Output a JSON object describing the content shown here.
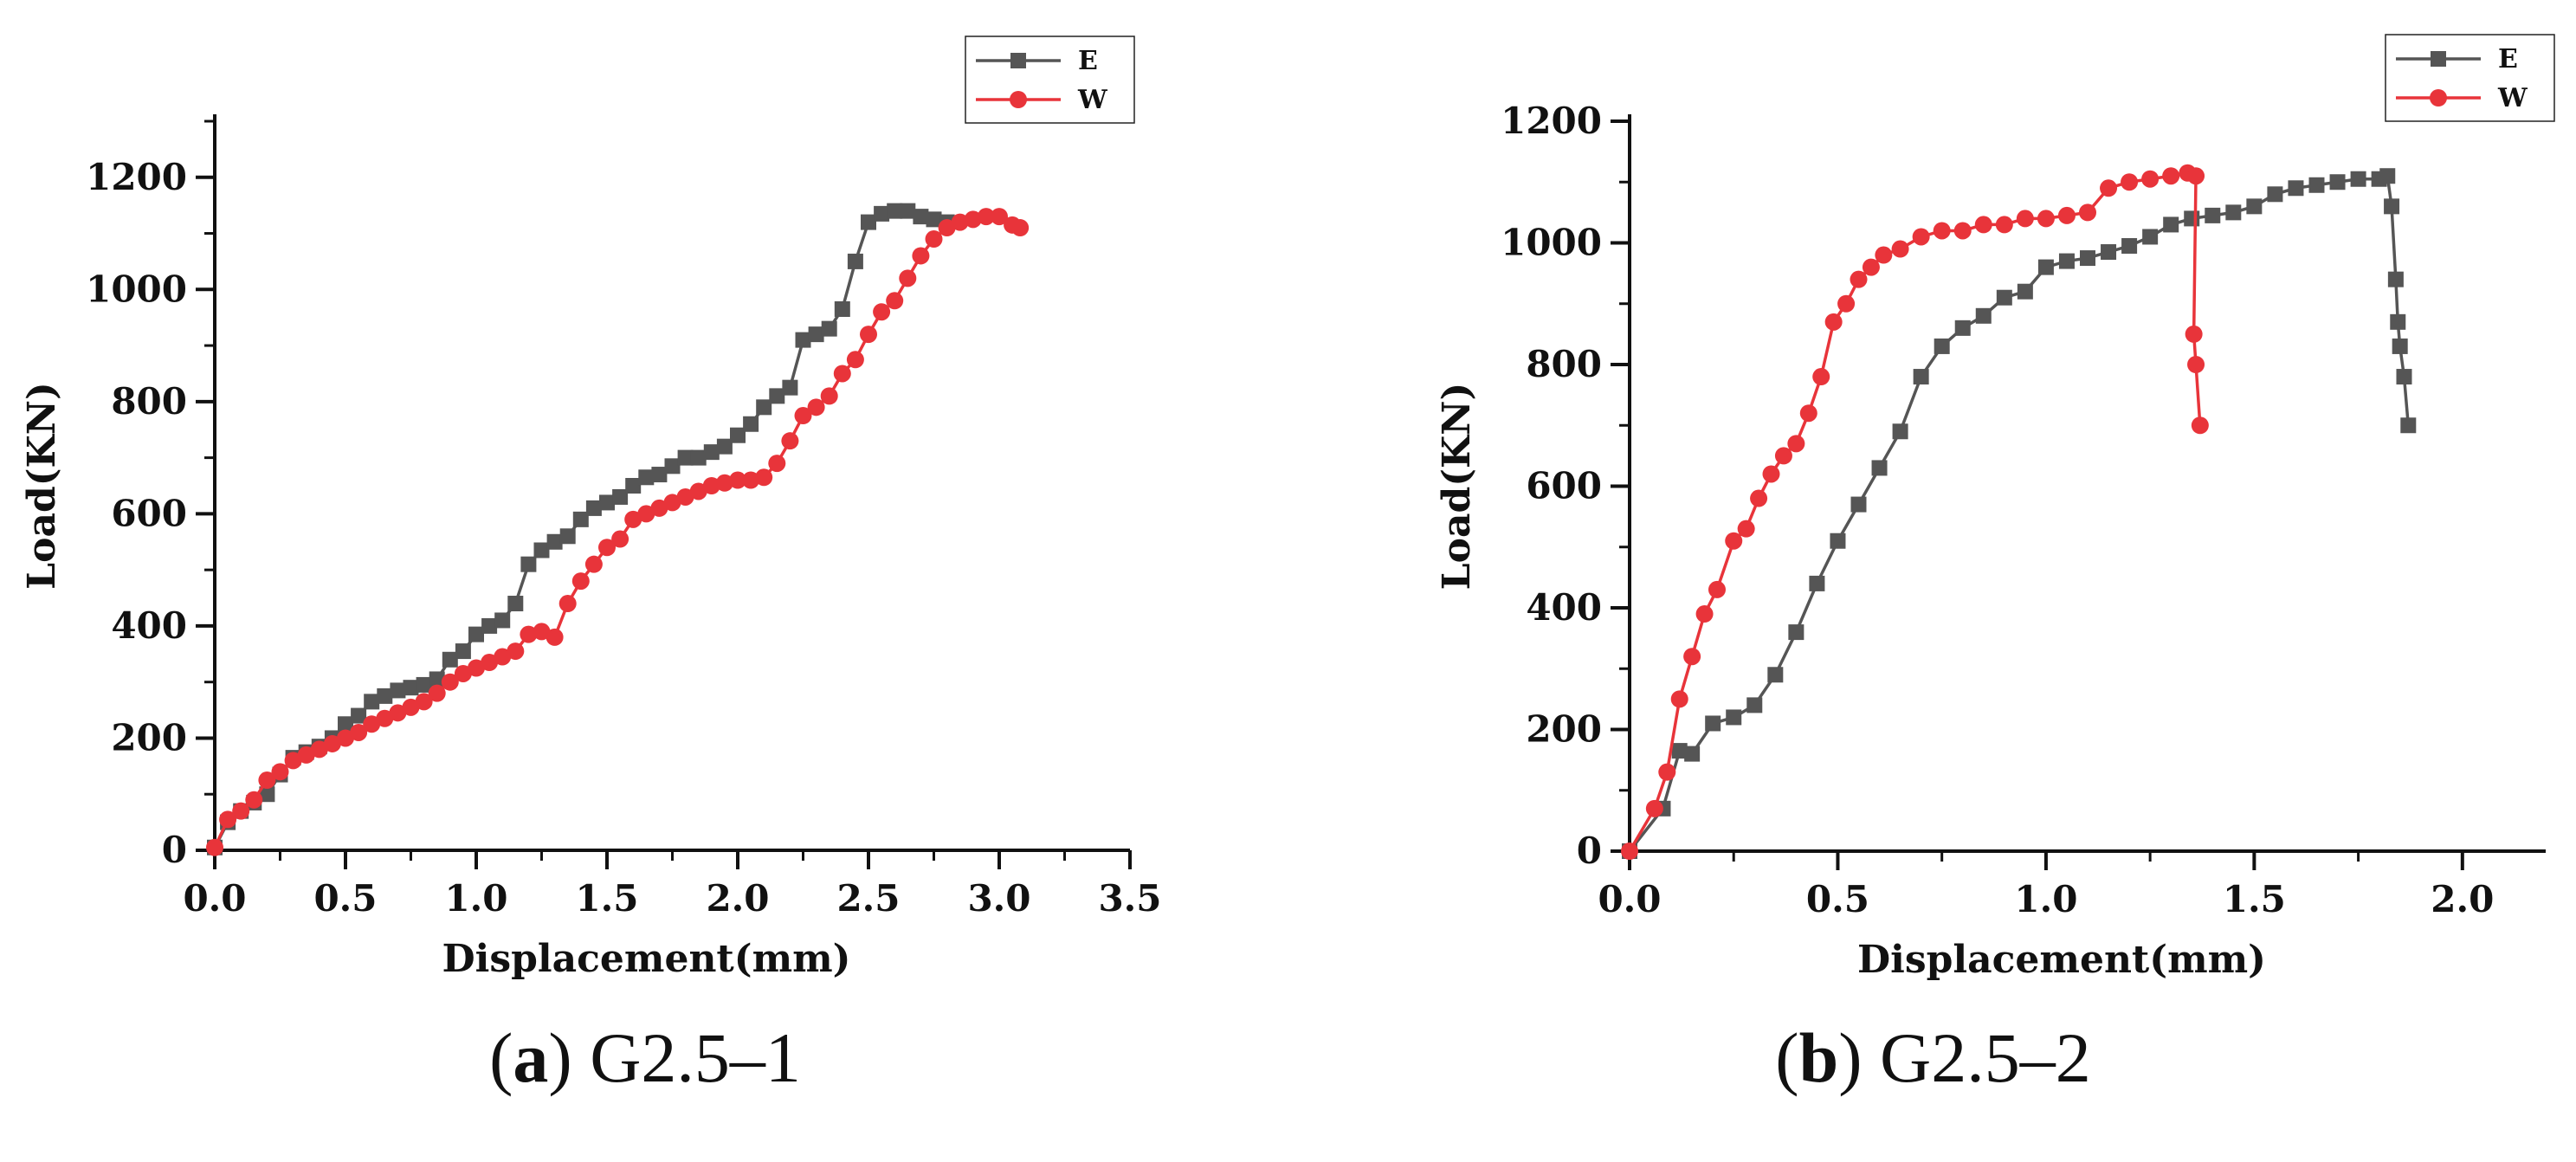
{
  "chart_data": [
    {
      "type": "line",
      "caption_letter": "a",
      "caption_text": "G2.5–1",
      "xlabel": "Displacement(mm)",
      "ylabel": "Load(KN)",
      "xlim": [
        0,
        3.5
      ],
      "ylim": [
        0,
        1300
      ],
      "xticks": [
        "0.0",
        "0.5",
        "1.0",
        "1.5",
        "2.0",
        "2.5",
        "3.0",
        "3.5"
      ],
      "yticks": [
        "0",
        "200",
        "400",
        "600",
        "800",
        "1000",
        "1200"
      ],
      "legend_position": "top-right",
      "series": [
        {
          "name": "E",
          "color": "#555555",
          "marker": "square",
          "x": [
            0.0,
            0.05,
            0.1,
            0.15,
            0.2,
            0.25,
            0.3,
            0.35,
            0.4,
            0.45,
            0.5,
            0.55,
            0.6,
            0.65,
            0.7,
            0.75,
            0.8,
            0.85,
            0.9,
            0.95,
            1.0,
            1.05,
            1.1,
            1.15,
            1.2,
            1.25,
            1.3,
            1.35,
            1.4,
            1.45,
            1.5,
            1.55,
            1.6,
            1.65,
            1.7,
            1.75,
            1.8,
            1.85,
            1.9,
            1.95,
            2.0,
            2.05,
            2.1,
            2.15,
            2.2,
            2.25,
            2.3,
            2.35,
            2.4,
            2.45,
            2.5,
            2.55,
            2.6,
            2.65,
            2.7,
            2.75,
            2.8
          ],
          "y": [
            5,
            50,
            70,
            85,
            100,
            135,
            165,
            175,
            185,
            200,
            225,
            240,
            265,
            275,
            285,
            290,
            295,
            305,
            340,
            355,
            385,
            400,
            410,
            440,
            510,
            535,
            550,
            560,
            590,
            610,
            620,
            630,
            650,
            665,
            670,
            685,
            700,
            700,
            710,
            720,
            740,
            760,
            790,
            810,
            825,
            910,
            920,
            930,
            965,
            1050,
            1120,
            1135,
            1140,
            1140,
            1130,
            1125,
            1120
          ]
        },
        {
          "name": "W",
          "color": "#e8343a",
          "marker": "circle",
          "x": [
            0.0,
            0.05,
            0.1,
            0.15,
            0.2,
            0.25,
            0.3,
            0.35,
            0.4,
            0.45,
            0.5,
            0.55,
            0.6,
            0.65,
            0.7,
            0.75,
            0.8,
            0.85,
            0.9,
            0.95,
            1.0,
            1.05,
            1.1,
            1.15,
            1.2,
            1.25,
            1.3,
            1.35,
            1.4,
            1.45,
            1.5,
            1.55,
            1.6,
            1.65,
            1.7,
            1.75,
            1.8,
            1.85,
            1.9,
            1.95,
            2.0,
            2.05,
            2.1,
            2.15,
            2.2,
            2.25,
            2.3,
            2.35,
            2.4,
            2.45,
            2.5,
            2.55,
            2.6,
            2.65,
            2.7,
            2.75,
            2.8,
            2.85,
            2.9,
            2.95,
            3.0,
            3.05,
            3.08
          ],
          "y": [
            5,
            55,
            70,
            90,
            125,
            140,
            160,
            170,
            180,
            190,
            200,
            210,
            225,
            235,
            245,
            255,
            265,
            280,
            300,
            315,
            325,
            335,
            345,
            355,
            385,
            390,
            380,
            440,
            480,
            510,
            540,
            555,
            590,
            600,
            610,
            620,
            630,
            640,
            650,
            655,
            660,
            660,
            665,
            690,
            730,
            775,
            790,
            810,
            850,
            875,
            920,
            960,
            980,
            1020,
            1060,
            1090,
            1110,
            1120,
            1125,
            1130,
            1130,
            1115,
            1110
          ]
        }
      ]
    },
    {
      "type": "line",
      "caption_letter": "b",
      "caption_text": "G2.5–2",
      "xlabel": "Displacement(mm)",
      "ylabel": "Load(KN)",
      "xlim": [
        0,
        2.2
      ],
      "ylim": [
        0,
        1200
      ],
      "xticks": [
        "0.0",
        "0.5",
        "1.0",
        "1.5",
        "2.0"
      ],
      "yticks": [
        "0",
        "200",
        "400",
        "600",
        "800",
        "1000",
        "1200"
      ],
      "legend_position": "top-right",
      "series": [
        {
          "name": "E",
          "color": "#555555",
          "marker": "square",
          "x": [
            0.0,
            0.08,
            0.12,
            0.15,
            0.2,
            0.25,
            0.3,
            0.35,
            0.4,
            0.45,
            0.5,
            0.55,
            0.6,
            0.65,
            0.7,
            0.75,
            0.8,
            0.85,
            0.9,
            0.95,
            1.0,
            1.05,
            1.1,
            1.15,
            1.2,
            1.25,
            1.3,
            1.35,
            1.4,
            1.45,
            1.5,
            1.55,
            1.6,
            1.65,
            1.7,
            1.75,
            1.8,
            1.82,
            1.83,
            1.84,
            1.845,
            1.85,
            1.86,
            1.87
          ],
          "y": [
            0,
            70,
            165,
            160,
            210,
            220,
            240,
            290,
            360,
            440,
            510,
            570,
            630,
            690,
            780,
            830,
            860,
            880,
            910,
            920,
            960,
            970,
            975,
            985,
            995,
            1010,
            1030,
            1040,
            1045,
            1050,
            1060,
            1080,
            1090,
            1095,
            1100,
            1105,
            1105,
            1110,
            1060,
            940,
            870,
            830,
            780,
            700
          ]
        },
        {
          "name": "W",
          "color": "#e8343a",
          "marker": "circle",
          "x": [
            0.0,
            0.06,
            0.09,
            0.12,
            0.15,
            0.18,
            0.21,
            0.25,
            0.28,
            0.31,
            0.34,
            0.37,
            0.4,
            0.43,
            0.46,
            0.49,
            0.52,
            0.55,
            0.58,
            0.61,
            0.65,
            0.7,
            0.75,
            0.8,
            0.85,
            0.9,
            0.95,
            1.0,
            1.05,
            1.1,
            1.15,
            1.2,
            1.25,
            1.3,
            1.34,
            1.36,
            1.355,
            1.36,
            1.37
          ],
          "y": [
            0,
            70,
            130,
            250,
            320,
            390,
            430,
            510,
            530,
            580,
            620,
            650,
            670,
            720,
            780,
            870,
            900,
            940,
            960,
            980,
            990,
            1010,
            1020,
            1020,
            1030,
            1030,
            1040,
            1040,
            1045,
            1050,
            1090,
            1100,
            1105,
            1110,
            1115,
            1110,
            850,
            800,
            700
          ]
        }
      ]
    }
  ]
}
